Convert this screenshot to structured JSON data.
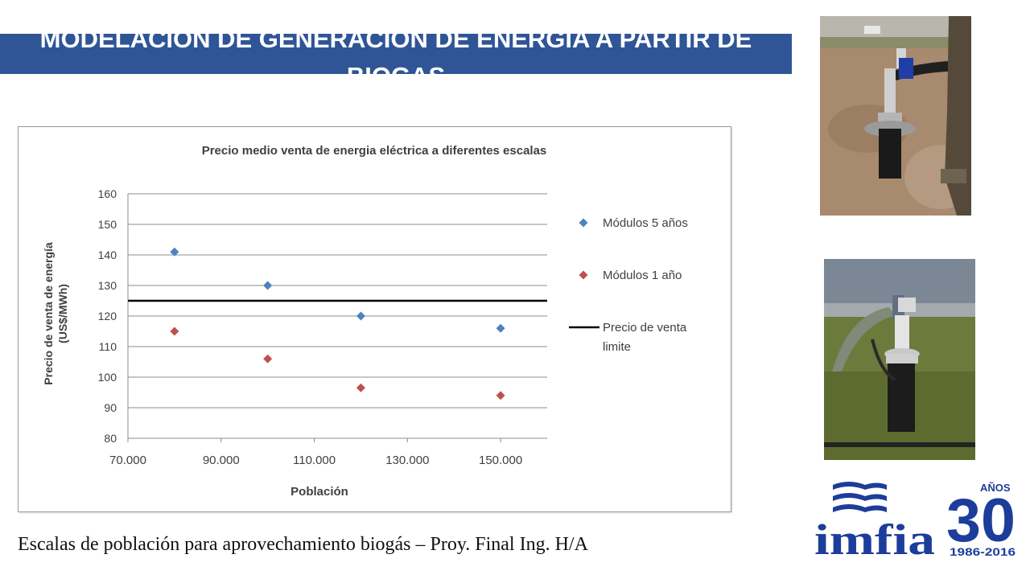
{
  "slide": {
    "title": "MODELACIÓN DE GENERACIÓN DE ENERGÍA A PARTIR DE BIOGAS",
    "caption": "Escalas de población para aprovechamiento  biogás – Proy. Final Ing. H/A"
  },
  "logo": {
    "name": "imfia",
    "years_word": "AÑOS",
    "years_number": "30",
    "years_range": "1986-2016",
    "brand_color": "#1c3d9a"
  },
  "photos": [
    "biogas-wellhead-photo-1",
    "biogas-wellhead-photo-2"
  ],
  "chart_data": {
    "type": "scatter",
    "title": "Precio medio venta de energia eléctrica a diferentes escalas",
    "xlabel": "Población",
    "ylabel": "Precio de venta de energía (US$/MWh)",
    "xlim": [
      70000,
      160000
    ],
    "ylim": [
      80,
      160
    ],
    "xticks": [
      "70.000",
      "90.000",
      "110.000",
      "130.000",
      "150.000"
    ],
    "yticks": [
      "80",
      "90",
      "100",
      "110",
      "120",
      "130",
      "140",
      "150",
      "160"
    ],
    "grid": "horizontal",
    "legend_position": "right",
    "series": [
      {
        "name": "Módulos 5 años",
        "marker": "diamond",
        "color": "#4f81bd",
        "x": [
          80000,
          100000,
          120000,
          150000
        ],
        "y": [
          141,
          130,
          120,
          116
        ]
      },
      {
        "name": "Módulos 1 año",
        "marker": "diamond",
        "color": "#c0504d",
        "x": [
          80000,
          100000,
          120000,
          150000
        ],
        "y": [
          115,
          106,
          96.5,
          94
        ]
      }
    ],
    "reference_line": {
      "name": "Precio de venta limite",
      "y": 125,
      "color": "#000000"
    }
  }
}
